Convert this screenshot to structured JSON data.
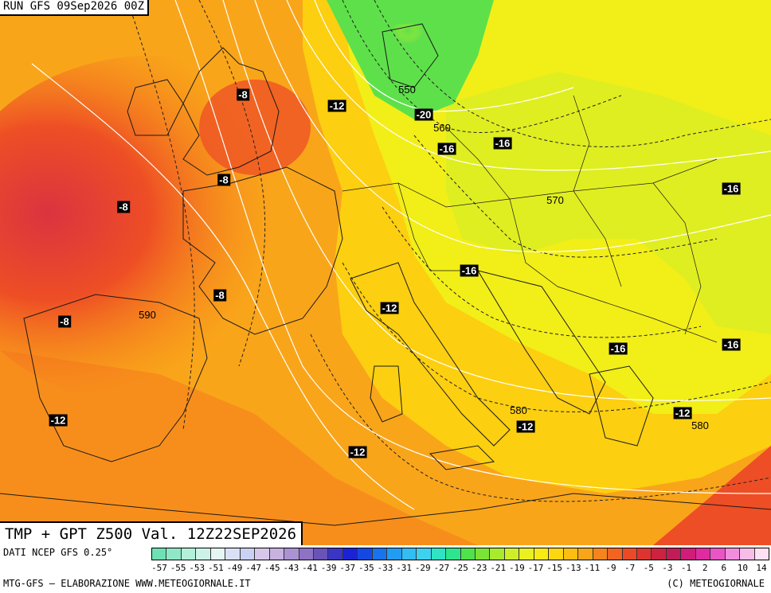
{
  "header": {
    "run_title": "RUN GFS 09Sep2026 00Z"
  },
  "map": {
    "title": "TMP + GPT Z500 Val. 12Z22SEP2026",
    "colors": {
      "green": "#5ee04a",
      "yellowgreen": "#cfee2a",
      "yellow": "#f2ee18",
      "gold": "#fccf10",
      "orange": "#f9a51a",
      "darkorange": "#f6841c",
      "red": "#ee4e25",
      "deepred": "#dc3340",
      "coast": "#1a1a1a",
      "isohypse": "#ffffff",
      "isotherm": "#222222"
    },
    "temperature_labels": [
      {
        "text": "-8"
      },
      {
        "text": "-12"
      },
      {
        "text": "-20"
      },
      {
        "text": "-16"
      },
      {
        "text": "-16"
      },
      {
        "text": "-8"
      },
      {
        "text": "-8"
      },
      {
        "text": "-16"
      },
      {
        "text": "-16"
      },
      {
        "text": "-8"
      },
      {
        "text": "-12"
      },
      {
        "text": "-8"
      },
      {
        "text": "-16"
      },
      {
        "text": "-16"
      },
      {
        "text": "-12"
      },
      {
        "text": "-12"
      },
      {
        "text": "-12"
      },
      {
        "text": "-12"
      }
    ],
    "geopotential_labels": [
      {
        "text": "550"
      },
      {
        "text": "560"
      },
      {
        "text": "570"
      },
      {
        "text": "590"
      },
      {
        "text": "580"
      },
      {
        "text": "580"
      }
    ]
  },
  "footer": {
    "source": "DATI NCEP GFS 0.25°",
    "credits": "MTG-GFS — ELABORAZIONE WWW.METEOGIORNALE.IT",
    "copyright": "(C) METEOGIORNALE"
  },
  "legend": {
    "tick_labels": [
      "-57",
      "-55",
      "-53",
      "-51",
      "-49",
      "-47",
      "-45",
      "-43",
      "-41",
      "-39",
      "-37",
      "-35",
      "-33",
      "-31",
      "-29",
      "-27",
      "-25",
      "-23",
      "-21",
      "-19",
      "-17",
      "-15",
      "-13",
      "-11",
      "-9",
      "-7",
      "-5",
      "-3",
      "-1",
      "2",
      "6",
      "10",
      "14"
    ],
    "swatches": [
      "#6fe0b4",
      "#8ee8c8",
      "#b2f0da",
      "#cdf3e8",
      "#e6f6f2",
      "#d9e2f5",
      "#c9d2f2",
      "#d7c8ea",
      "#c7b2e0",
      "#aa92d3",
      "#8e73c5",
      "#6a53b6",
      "#3b35c6",
      "#1b22d6",
      "#1548e3",
      "#1874ec",
      "#229cf2",
      "#33bdf3",
      "#3fd2f0",
      "#2fe3c4",
      "#2ee58d",
      "#4fe24a",
      "#7be336",
      "#a8ea2c",
      "#cfee2a",
      "#eaf022",
      "#f8ea16",
      "#fcd711",
      "#fcbe12",
      "#f9a51a",
      "#f6841c",
      "#f26421",
      "#ea4a26",
      "#de3430",
      "#cc2340",
      "#c21c56",
      "#d01d7a",
      "#e02ba0",
      "#ea54c4",
      "#f28ddd",
      "#f8bce9",
      "#fde0f1"
    ]
  }
}
